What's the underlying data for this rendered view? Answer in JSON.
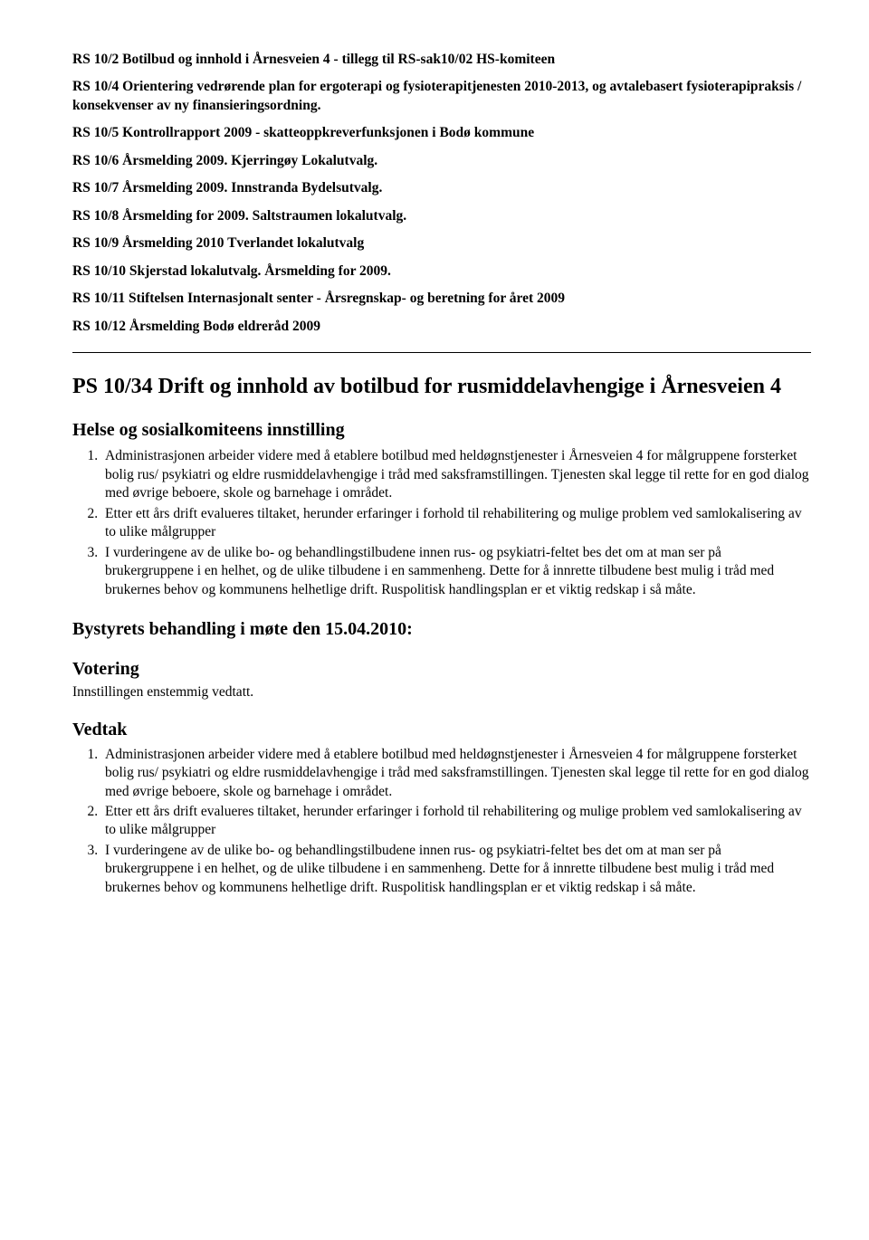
{
  "rs_items": [
    "RS 10/2 Botilbud og innhold i Årnesveien 4 - tillegg til RS-sak10/02 HS-komiteen",
    "RS 10/4 Orientering vedrørende plan for ergoterapi og fysioterapitjenesten 2010-2013, og avtalebasert fysioterapipraksis / konsekvenser av ny finansieringsordning.",
    "RS 10/5 Kontrollrapport 2009 - skatteoppkreverfunksjonen i Bodø kommune",
    "RS 10/6 Årsmelding 2009. Kjerringøy Lokalutvalg.",
    "RS 10/7 Årsmelding 2009. Innstranda Bydelsutvalg.",
    "RS 10/8 Årsmelding for 2009. Saltstraumen lokalutvalg.",
    "RS 10/9 Årsmelding 2010 Tverlandet lokalutvalg",
    "RS 10/10 Skjerstad lokalutvalg. Årsmelding for 2009.",
    "RS 10/11 Stiftelsen Internasjonalt senter - Årsregnskap- og beretning for året 2009",
    "RS 10/12 Årsmelding Bodø eldreråd 2009"
  ],
  "ps_title": "PS 10/34 Drift og innhold av botilbud for rusmiddelavhengige i Årnesveien 4",
  "innstilling": {
    "heading": "Helse og sosialkomiteens innstilling",
    "items": [
      "Administrasjonen arbeider videre med å etablere botilbud med heldøgnstjenester i Årnesveien 4 for målgruppene forsterket bolig rus/ psykiatri og eldre rusmiddelavhengige i tråd med saksframstillingen. Tjenesten skal legge til rette for en god dialog med øvrige beboere, skole og barnehage i området.",
      "Etter ett års drift evalueres tiltaket, herunder erfaringer i forhold til rehabilitering og mulige problem ved samlokalisering av to ulike målgrupper",
      "I vurderingene av de ulike bo- og behandlingstilbudene innen rus- og psykiatri-feltet bes det om at man ser på brukergruppene i en helhet, og de ulike tilbudene i en sammenheng. Dette for å innrette tilbudene best mulig i tråd med brukernes behov og kommunens helhetlige drift. Ruspolitisk handlingsplan er et viktig redskap i så måte."
    ]
  },
  "behandling_heading": "Bystyrets behandling i møte den 15.04.2010:",
  "votering": {
    "heading": "Votering",
    "text": "Innstillingen enstemmig vedtatt."
  },
  "vedtak": {
    "heading": "Vedtak",
    "items": [
      "Administrasjonen arbeider videre med å etablere botilbud med heldøgnstjenester i Årnesveien 4 for målgruppene forsterket bolig rus/ psykiatri og eldre rusmiddelavhengige i tråd med saksframstillingen. Tjenesten skal legge til rette for en god dialog med øvrige beboere, skole og barnehage i området.",
      "Etter ett års drift evalueres tiltaket, herunder erfaringer i forhold til rehabilitering og mulige problem ved samlokalisering av to ulike målgrupper",
      "I vurderingene av de ulike bo- og behandlingstilbudene innen rus- og psykiatri-feltet bes det om at man ser på brukergruppene i en helhet, og de ulike tilbudene i en sammenheng. Dette for å innrette tilbudene best mulig i tråd med brukernes behov og kommunens helhetlige drift. Ruspolitisk handlingsplan er et viktig redskap i så måte."
    ]
  }
}
